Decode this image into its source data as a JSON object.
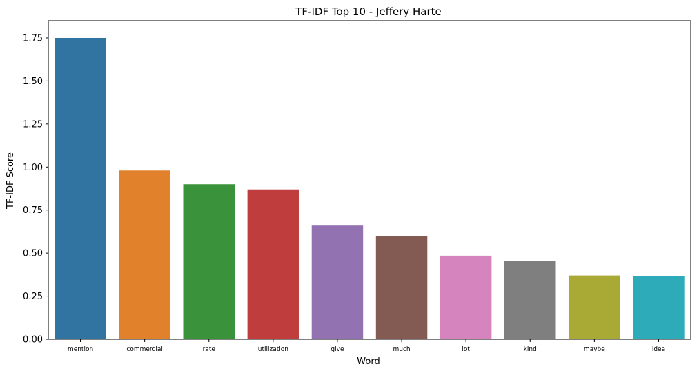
{
  "chart_data": {
    "type": "bar",
    "title": "TF-IDF Top 10 - Jeffery Harte",
    "xlabel": "Word",
    "ylabel": "TF-IDF Score",
    "categories": [
      "mention",
      "commercial",
      "rate",
      "utilization",
      "give",
      "much",
      "lot",
      "kind",
      "maybe",
      "idea"
    ],
    "values": [
      1.75,
      0.98,
      0.9,
      0.87,
      0.66,
      0.6,
      0.485,
      0.455,
      0.37,
      0.365
    ],
    "colors": [
      "#3274a1",
      "#e1812c",
      "#3a923a",
      "#c03d3e",
      "#9372b2",
      "#845b53",
      "#d684bd",
      "#7f7f7f",
      "#a9aa35",
      "#2eabb8"
    ],
    "ylim": [
      0,
      1.85
    ],
    "yticks": [
      "0.00",
      "0.25",
      "0.50",
      "0.75",
      "1.00",
      "1.25",
      "1.50",
      "1.75"
    ],
    "grid": false
  }
}
